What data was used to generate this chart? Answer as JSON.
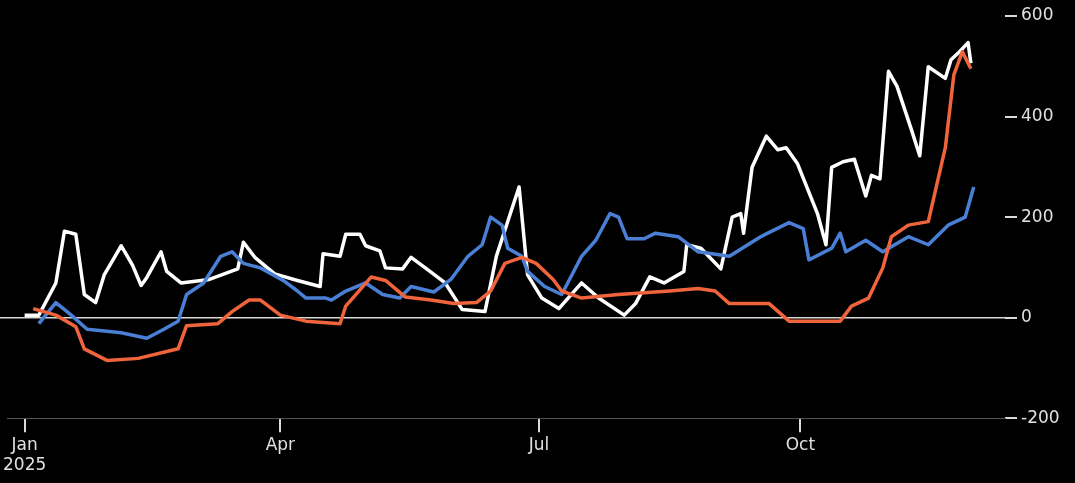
{
  "chart_data": {
    "type": "line",
    "xlim": [
      "2024-12-26",
      "2025-12-12"
    ],
    "ylim": [
      -200,
      600
    ],
    "xticks": [
      {
        "value": "2025-01-01",
        "label": "Jan\n2025"
      },
      {
        "value": "2025-04-01",
        "label": "Apr"
      },
      {
        "value": "2025-07-01",
        "label": "Jul"
      },
      {
        "value": "2025-10-01",
        "label": "Oct"
      }
    ],
    "yticks": [
      -200,
      0,
      200,
      400,
      600
    ],
    "ref_lines": [
      {
        "axis": "y",
        "value": 0,
        "color": "#d9d9d9"
      }
    ],
    "series": [
      {
        "color": "#f0643c",
        "x": [
          "2025-01-04",
          "2025-01-12",
          "2025-01-19",
          "2025-01-22",
          "2025-01-30",
          "2025-02-10",
          "2025-02-24",
          "2025-02-27",
          "2025-03-10",
          "2025-03-15",
          "2025-03-21",
          "2025-03-25",
          "2025-04-01",
          "2025-04-10",
          "2025-04-22",
          "2025-04-24",
          "2025-05-03",
          "2025-05-08",
          "2025-05-15",
          "2025-05-24",
          "2025-06-01",
          "2025-06-09",
          "2025-06-14",
          "2025-06-19",
          "2025-06-25",
          "2025-06-30",
          "2025-07-06",
          "2025-07-09",
          "2025-07-16",
          "2025-07-29",
          "2025-08-16",
          "2025-08-26",
          "2025-09-01",
          "2025-09-06",
          "2025-09-20",
          "2025-09-27",
          "2025-10-15",
          "2025-10-19",
          "2025-10-25",
          "2025-10-30",
          "2025-11-02",
          "2025-11-08",
          "2025-11-15",
          "2025-11-21",
          "2025-11-24",
          "2025-11-27",
          "2025-11-30"
        ],
        "values": [
          18,
          5,
          -18,
          -62,
          -85,
          -81,
          -62,
          -16,
          -12,
          12,
          35,
          35,
          5,
          -7,
          -12,
          23,
          81,
          74,
          41,
          35,
          28,
          30,
          53,
          108,
          120,
          108,
          76,
          53,
          39,
          46,
          53,
          58,
          53,
          28,
          28,
          -7,
          -7,
          23,
          39,
          99,
          161,
          184,
          191,
          338,
          483,
          529,
          495
        ]
      },
      {
        "color": "#4a7fd6",
        "x": [
          "2025-01-06",
          "2025-01-12",
          "2025-01-17",
          "2025-01-23",
          "2025-02-04",
          "2025-02-13",
          "2025-02-19",
          "2025-02-24",
          "2025-02-27",
          "2025-03-05",
          "2025-03-11",
          "2025-03-15",
          "2025-03-19",
          "2025-03-25",
          "2025-04-02",
          "2025-04-07",
          "2025-04-10",
          "2025-04-17",
          "2025-04-19",
          "2025-04-24",
          "2025-05-01",
          "2025-05-07",
          "2025-05-13",
          "2025-05-17",
          "2025-05-25",
          "2025-05-31",
          "2025-06-06",
          "2025-06-11",
          "2025-06-14",
          "2025-06-18",
          "2025-06-20",
          "2025-06-25",
          "2025-06-27",
          "2025-07-03",
          "2025-07-09",
          "2025-07-16",
          "2025-07-21",
          "2025-07-26",
          "2025-07-29",
          "2025-08-01",
          "2025-08-07",
          "2025-08-11",
          "2025-08-19",
          "2025-08-26",
          "2025-09-06",
          "2025-09-17",
          "2025-09-27",
          "2025-10-02",
          "2025-10-04",
          "2025-10-12",
          "2025-10-15",
          "2025-10-17",
          "2025-10-24",
          "2025-10-30",
          "2025-11-08",
          "2025-11-15",
          "2025-11-22",
          "2025-11-28",
          "2025-12-01"
        ],
        "values": [
          -12,
          30,
          7,
          -23,
          -30,
          -41,
          -23,
          -7,
          46,
          69,
          122,
          131,
          108,
          99,
          74,
          53,
          39,
          39,
          35,
          53,
          69,
          46,
          39,
          62,
          51,
          76,
          122,
          145,
          200,
          184,
          138,
          122,
          92,
          62,
          46,
          122,
          154,
          207,
          200,
          157,
          157,
          168,
          161,
          131,
          122,
          161,
          189,
          177,
          115,
          138,
          168,
          131,
          154,
          131,
          161,
          145,
          184,
          200,
          260
        ]
      },
      {
        "color": "#ffffff",
        "x": [
          "2025-01-01",
          "2025-01-06",
          "2025-01-12",
          "2025-01-15",
          "2025-01-19",
          "2025-01-22",
          "2025-01-26",
          "2025-01-29",
          "2025-02-04",
          "2025-02-08",
          "2025-02-11",
          "2025-02-13",
          "2025-02-18",
          "2025-02-20",
          "2025-02-25",
          "2025-03-07",
          "2025-03-17",
          "2025-03-19",
          "2025-03-23",
          "2025-03-30",
          "2025-04-07",
          "2025-04-15",
          "2025-04-16",
          "2025-04-22",
          "2025-04-24",
          "2025-04-29",
          "2025-05-01",
          "2025-05-06",
          "2025-05-08",
          "2025-05-14",
          "2025-05-17",
          "2025-05-22",
          "2025-05-29",
          "2025-06-04",
          "2025-06-12",
          "2025-06-16",
          "2025-06-24",
          "2025-06-27",
          "2025-07-02",
          "2025-07-08",
          "2025-07-16",
          "2025-07-22",
          "2025-07-31",
          "2025-08-04",
          "2025-08-09",
          "2025-08-14",
          "2025-08-21",
          "2025-08-22",
          "2025-08-27",
          "2025-09-03",
          "2025-09-07",
          "2025-09-10",
          "2025-09-11",
          "2025-09-14",
          "2025-09-19",
          "2025-09-23",
          "2025-09-26",
          "2025-09-30",
          "2025-10-07",
          "2025-10-10",
          "2025-10-12",
          "2025-10-16",
          "2025-10-20",
          "2025-10-24",
          "2025-10-26",
          "2025-10-29",
          "2025-11-01",
          "2025-11-04",
          "2025-11-09",
          "2025-11-12",
          "2025-11-15",
          "2025-11-21",
          "2025-11-23",
          "2025-11-26",
          "2025-11-29",
          "2025-11-30"
        ],
        "values": [
          5,
          5,
          69,
          172,
          166,
          46,
          30,
          85,
          143,
          104,
          64,
          80,
          131,
          92,
          69,
          76,
          97,
          150,
          120,
          87,
          74,
          62,
          127,
          122,
          166,
          166,
          143,
          133,
          99,
          97,
          120,
          99,
          69,
          16,
          12,
          122,
          260,
          85,
          39,
          18,
          69,
          39,
          5,
          28,
          81,
          69,
          92,
          145,
          138,
          97,
          200,
          207,
          168,
          299,
          361,
          334,
          338,
          306,
          207,
          145,
          299,
          310,
          315,
          242,
          283,
          276,
          490,
          460,
          375,
          322,
          499,
          476,
          513,
          529,
          547,
          506
        ]
      }
    ]
  }
}
